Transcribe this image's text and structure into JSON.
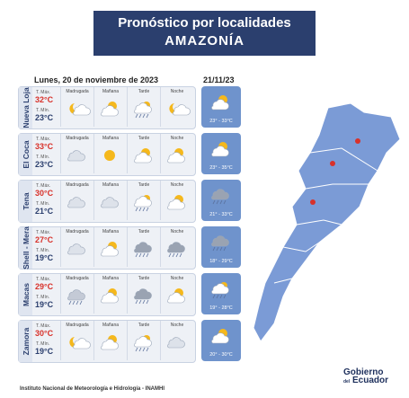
{
  "header": {
    "title": "Pronóstico por localidades",
    "subtitle": "AMAZONÍA"
  },
  "forecast": {
    "date": "Lunes, 20 de noviembre de 2023",
    "next_date": "21/11/23",
    "max_label": "T. Máx.",
    "min_label": "T. Mín.",
    "periods": [
      "Madrugada",
      "Mañana",
      "Tarde",
      "Noche"
    ],
    "rows": [
      {
        "name": "Nueva Loja",
        "max": "32°C",
        "min": "23°C",
        "next": "23° - 33°C"
      },
      {
        "name": "El Coca",
        "max": "33°C",
        "min": "23°C",
        "next": "23° - 35°C"
      },
      {
        "name": "Tena",
        "max": "30°C",
        "min": "21°C",
        "next": "21° - 33°C"
      },
      {
        "name": "Shell - Mera",
        "max": "27°C",
        "min": "19°C",
        "next": "18° - 29°C"
      },
      {
        "name": "Macas",
        "max": "29°C",
        "min": "19°C",
        "next": "19° - 28°C"
      },
      {
        "name": "Zamora",
        "max": "30°C",
        "min": "19°C",
        "next": "20° - 30°C"
      }
    ]
  },
  "footer": {
    "institute": "Instituto Nacional de Meteorología e Hidrología - INAMHI",
    "logo_top": "Gobierno",
    "logo_small": "del",
    "logo_bottom": "Ecuador"
  }
}
